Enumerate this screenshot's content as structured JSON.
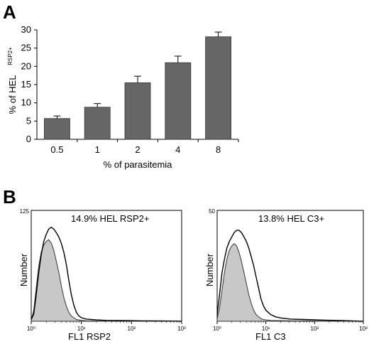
{
  "panels": {
    "a": "A",
    "b": "B"
  },
  "chart_data": [
    {
      "type": "bar",
      "categories": [
        "0.5",
        "1",
        "2",
        "4",
        "8"
      ],
      "values": [
        5.7,
        8.8,
        15.5,
        21.0,
        28.1
      ],
      "errors": [
        0.7,
        1.0,
        1.8,
        1.8,
        1.3
      ],
      "xlabel": "% of parasitemia",
      "ylabel": "% of HEL",
      "ylabel_superscript": "RSP2+",
      "ylim": [
        0,
        30
      ],
      "yticks": [
        "0",
        "5",
        "10",
        "15",
        "20",
        "25",
        "30"
      ],
      "bar_color": "#666666",
      "grid": false
    },
    {
      "type": "area",
      "annotation": "14.9% HEL RSP2+",
      "xlabel": "FL1 RSP2",
      "ylabel": "Number",
      "ylim": [
        0,
        125
      ],
      "ytick_top": "125",
      "xticks": [
        "10⁰",
        "10¹",
        "10²",
        "10³"
      ],
      "x": [
        0,
        0.05,
        0.1,
        0.15,
        0.2,
        0.25,
        0.3,
        0.35,
        0.4,
        0.45,
        0.5,
        0.55,
        0.6,
        0.65,
        0.7,
        0.75,
        0.8,
        0.85,
        0.9,
        0.95,
        1.0,
        1.1,
        1.2,
        1.3,
        1.5,
        1.8,
        2.2,
        2.6,
        3.0
      ],
      "series": [
        {
          "name": "",
          "fill": "#c8c8c8",
          "values": [
            2,
            12,
            38,
            62,
            78,
            86,
            90,
            92,
            88,
            80,
            68,
            55,
            40,
            27,
            17,
            10,
            6,
            4,
            2,
            1.5,
            1,
            0.5,
            0.5,
            0.3,
            0.2,
            0.2,
            0.1,
            0.1,
            0
          ]
        },
        {
          "name": "",
          "fill": "none",
          "values": [
            2,
            8,
            30,
            55,
            75,
            90,
            98,
            104,
            106,
            104,
            100,
            95,
            88,
            78,
            64,
            46,
            30,
            18,
            10,
            6,
            4,
            2.5,
            2,
            1.5,
            1,
            0.8,
            0.5,
            0.3,
            0
          ]
        }
      ]
    },
    {
      "type": "area",
      "annotation": "13.8% HEL C3+",
      "xlabel": "FL1 C3",
      "ylabel": "Number",
      "ylim": [
        0,
        50
      ],
      "ytick_top": "50",
      "xticks": [
        "10⁰",
        "10¹",
        "10²",
        "10³"
      ],
      "x": [
        0,
        0.05,
        0.1,
        0.15,
        0.2,
        0.25,
        0.3,
        0.35,
        0.4,
        0.45,
        0.5,
        0.55,
        0.6,
        0.65,
        0.7,
        0.75,
        0.8,
        0.85,
        0.9,
        0.95,
        1.0,
        1.1,
        1.2,
        1.3,
        1.5,
        1.8,
        2.2,
        2.6,
        3.0
      ],
      "series": [
        {
          "name": "",
          "fill": "#c8c8c8",
          "values": [
            1,
            6,
            14,
            22,
            28,
            32,
            34,
            35,
            34,
            31,
            27,
            22,
            17,
            12,
            8,
            5,
            3,
            2,
            1.2,
            0.8,
            0.6,
            0.4,
            0.3,
            0.3,
            0.2,
            0.2,
            0.1,
            0.1,
            0
          ]
        },
        {
          "name": "",
          "fill": "none",
          "values": [
            3,
            12,
            22,
            28,
            33,
            36,
            38,
            40,
            41,
            41,
            40,
            38,
            36,
            33,
            29,
            25,
            20,
            15,
            10,
            7,
            5,
            3,
            2,
            1.5,
            1,
            0.8,
            0.5,
            0.3,
            0
          ]
        }
      ]
    }
  ]
}
